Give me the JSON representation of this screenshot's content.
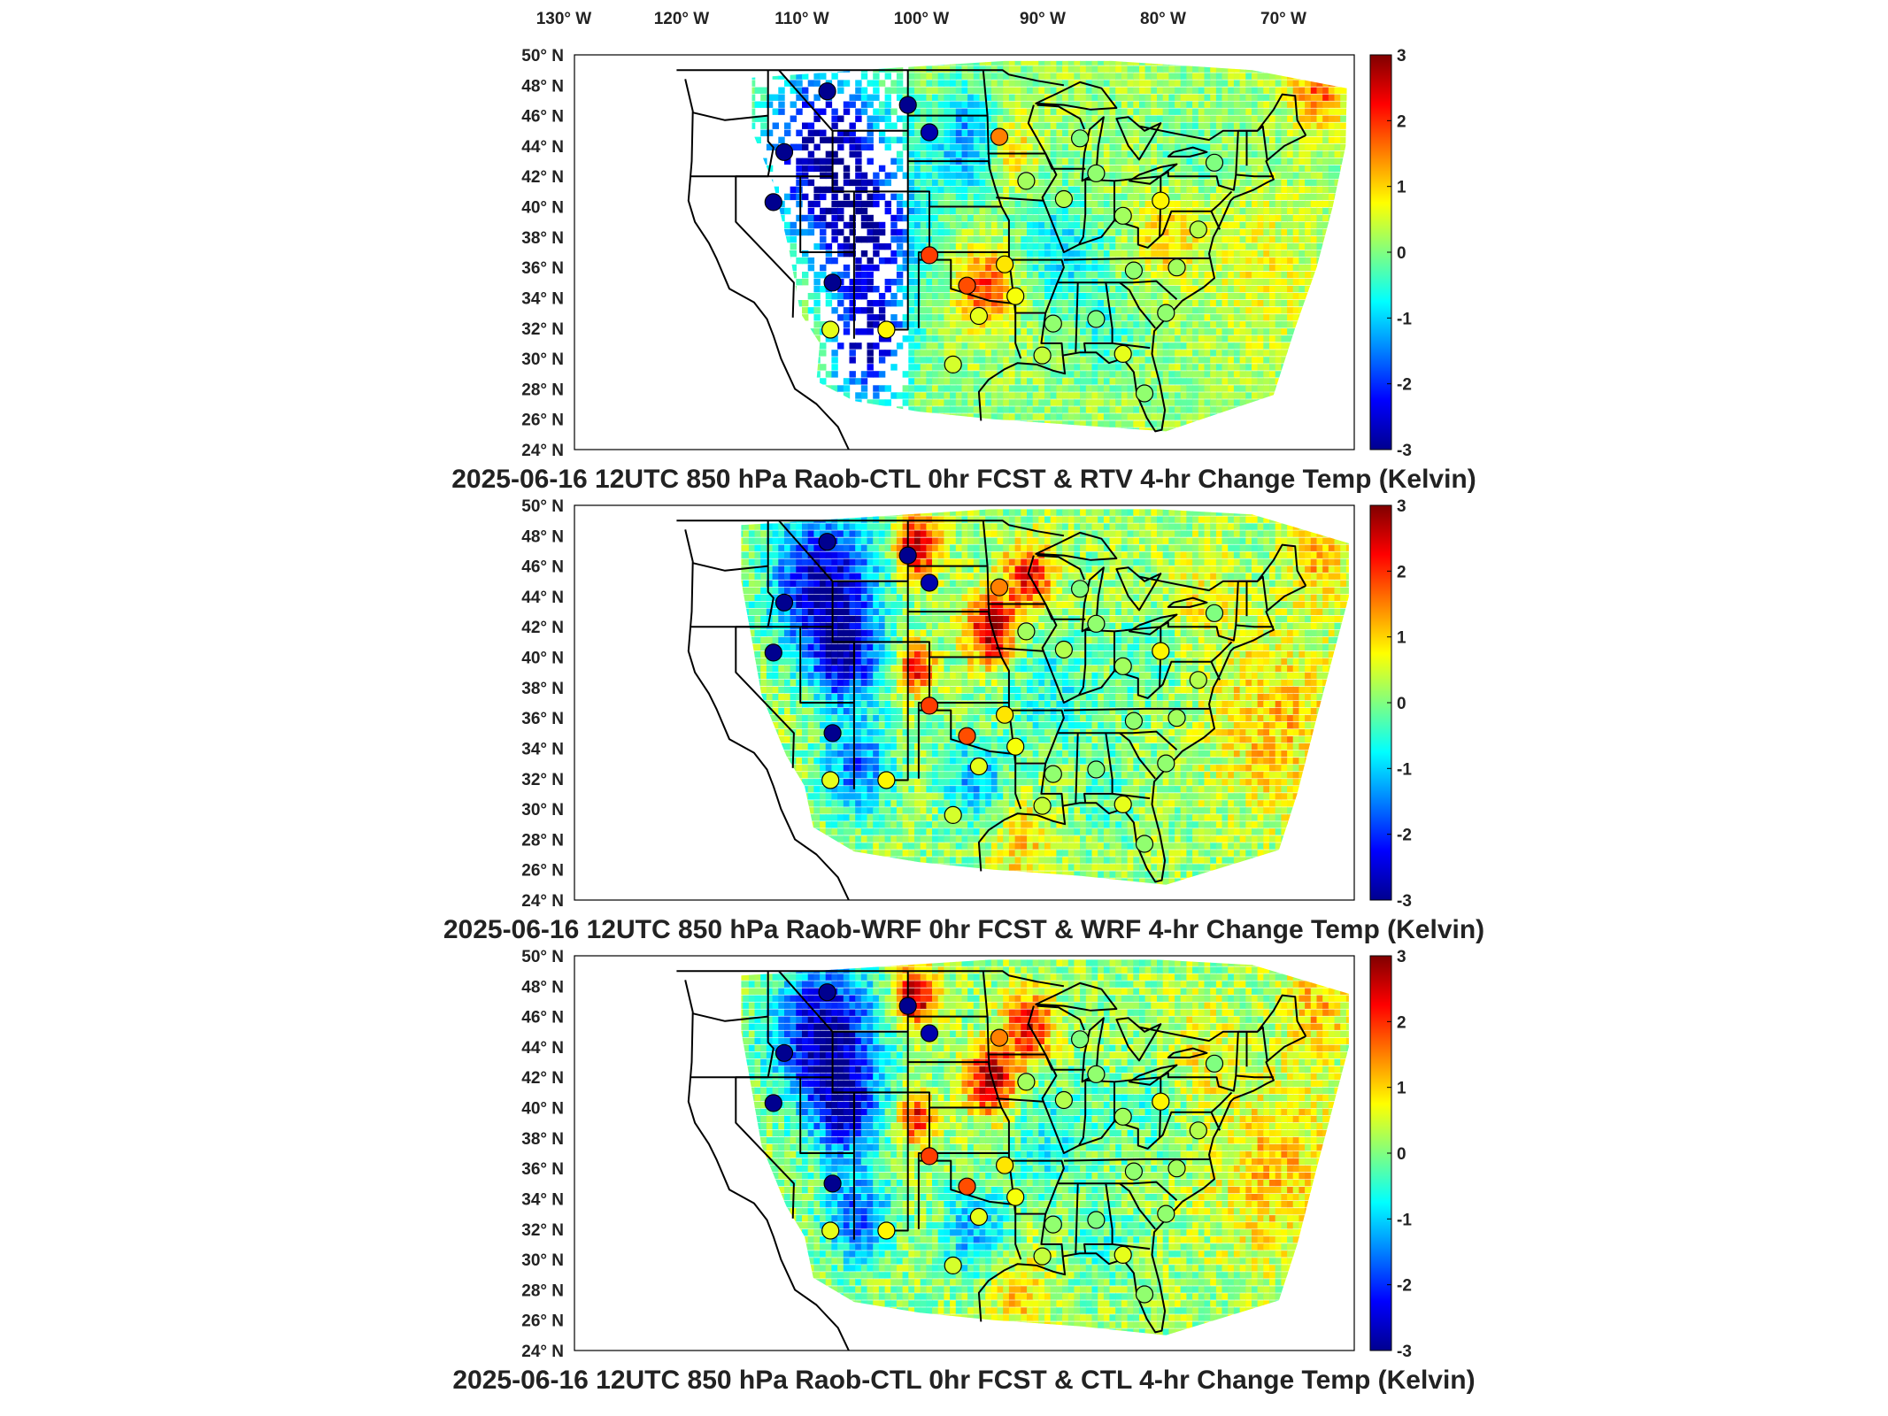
{
  "figure": {
    "lon_ticks": [
      "130",
      "120",
      "110",
      "100",
      "90",
      "80",
      "70"
    ],
    "lon_suffix": "W",
    "lat_ticks": [
      "50",
      "48",
      "46",
      "44",
      "42",
      "40",
      "38",
      "36",
      "34",
      "32",
      "30",
      "28",
      "26",
      "24"
    ],
    "lat_suffix": "N",
    "colorbar_ticks": [
      "3",
      "2",
      "1",
      "0",
      "-1",
      "-2",
      "-3"
    ],
    "colorbar_range": [
      -3,
      3
    ],
    "colormap": [
      "#00008f",
      "#0000ff",
      "#0080ff",
      "#00ffff",
      "#80ff80",
      "#ffff00",
      "#ff8000",
      "#ff0000",
      "#800000"
    ],
    "panels": [
      {
        "title": "2025-06-16 12UTC 850 hPa Raob-CTL 0hr FCST & RTV 4-hr Change Temp (Kelvin)",
        "field_style": "sparse",
        "stations": [
          {
            "lon": -111.5,
            "lat": 47.6,
            "value": -3
          },
          {
            "lon": -104,
            "lat": 46.7,
            "value": -3
          },
          {
            "lon": -102,
            "lat": 44.9,
            "value": -2.8
          },
          {
            "lon": -115.5,
            "lat": 43.6,
            "value": -3
          },
          {
            "lon": -116.5,
            "lat": 40.3,
            "value": -3
          },
          {
            "lon": -111,
            "lat": 35.0,
            "value": -3
          },
          {
            "lon": -111.2,
            "lat": 31.9,
            "value": 0.6
          },
          {
            "lon": -106,
            "lat": 31.9,
            "value": 0.8
          },
          {
            "lon": -102,
            "lat": 36.8,
            "value": 1.9
          },
          {
            "lon": -98.5,
            "lat": 34.8,
            "value": 1.8
          },
          {
            "lon": -95.5,
            "lat": 44.6,
            "value": 1.5
          },
          {
            "lon": -93,
            "lat": 41.7,
            "value": 0.2
          },
          {
            "lon": -97.4,
            "lat": 32.8,
            "value": 0.6
          },
          {
            "lon": -99.8,
            "lat": 29.6,
            "value": 0.5
          },
          {
            "lon": -95,
            "lat": 36.2,
            "value": 0.9
          },
          {
            "lon": -94,
            "lat": 34.1,
            "value": 0.7
          },
          {
            "lon": -89.5,
            "lat": 40.5,
            "value": 0.3
          },
          {
            "lon": -88,
            "lat": 44.5,
            "value": 0.0
          },
          {
            "lon": -86.5,
            "lat": 42.2,
            "value": 0.1
          },
          {
            "lon": -84,
            "lat": 39.4,
            "value": 0.2
          },
          {
            "lon": -83,
            "lat": 35.8,
            "value": 0.1
          },
          {
            "lon": -80.5,
            "lat": 40.4,
            "value": 0.8
          },
          {
            "lon": -77,
            "lat": 38.5,
            "value": 0.3
          },
          {
            "lon": -79,
            "lat": 36.0,
            "value": 0.2
          },
          {
            "lon": -75.5,
            "lat": 42.9,
            "value": 0.0
          },
          {
            "lon": -80,
            "lat": 33.0,
            "value": 0.1
          },
          {
            "lon": -84,
            "lat": 30.3,
            "value": 0.6
          },
          {
            "lon": -90.5,
            "lat": 32.3,
            "value": 0.1
          },
          {
            "lon": -86.5,
            "lat": 32.6,
            "value": 0.0
          },
          {
            "lon": -82,
            "lat": 27.7,
            "value": 0.1
          },
          {
            "lon": -91.5,
            "lat": 30.2,
            "value": 0.4
          }
        ]
      },
      {
        "title": "2025-06-16 12UTC 850 hPa Raob-WRF 0hr FCST & WRF 4-hr Change Temp (Kelvin)",
        "field_style": "dense",
        "stations": [
          {
            "lon": -111.5,
            "lat": 47.6,
            "value": -3
          },
          {
            "lon": -104,
            "lat": 46.7,
            "value": -3
          },
          {
            "lon": -102,
            "lat": 44.9,
            "value": -2.8
          },
          {
            "lon": -115.5,
            "lat": 43.6,
            "value": -3
          },
          {
            "lon": -116.5,
            "lat": 40.3,
            "value": -3
          },
          {
            "lon": -111,
            "lat": 35.0,
            "value": -3
          },
          {
            "lon": -111.2,
            "lat": 31.9,
            "value": 0.6
          },
          {
            "lon": -106,
            "lat": 31.9,
            "value": 0.8
          },
          {
            "lon": -102,
            "lat": 36.8,
            "value": 1.9
          },
          {
            "lon": -98.5,
            "lat": 34.8,
            "value": 1.8
          },
          {
            "lon": -95.5,
            "lat": 44.6,
            "value": 1.5
          },
          {
            "lon": -93,
            "lat": 41.7,
            "value": 0.2
          },
          {
            "lon": -97.4,
            "lat": 32.8,
            "value": 0.6
          },
          {
            "lon": -99.8,
            "lat": 29.6,
            "value": 0.5
          },
          {
            "lon": -95,
            "lat": 36.2,
            "value": 0.9
          },
          {
            "lon": -94,
            "lat": 34.1,
            "value": 0.7
          },
          {
            "lon": -89.5,
            "lat": 40.5,
            "value": 0.3
          },
          {
            "lon": -88,
            "lat": 44.5,
            "value": 0.0
          },
          {
            "lon": -86.5,
            "lat": 42.2,
            "value": 0.1
          },
          {
            "lon": -84,
            "lat": 39.4,
            "value": 0.2
          },
          {
            "lon": -83,
            "lat": 35.8,
            "value": 0.1
          },
          {
            "lon": -80.5,
            "lat": 40.4,
            "value": 0.8
          },
          {
            "lon": -77,
            "lat": 38.5,
            "value": 0.3
          },
          {
            "lon": -79,
            "lat": 36.0,
            "value": 0.2
          },
          {
            "lon": -75.5,
            "lat": 42.9,
            "value": 0.0
          },
          {
            "lon": -80,
            "lat": 33.0,
            "value": 0.1
          },
          {
            "lon": -84,
            "lat": 30.3,
            "value": 0.6
          },
          {
            "lon": -90.5,
            "lat": 32.3,
            "value": 0.1
          },
          {
            "lon": -86.5,
            "lat": 32.6,
            "value": 0.0
          },
          {
            "lon": -82,
            "lat": 27.7,
            "value": 0.1
          },
          {
            "lon": -91.5,
            "lat": 30.2,
            "value": 0.4
          }
        ]
      },
      {
        "title": "2025-06-16 12UTC 850 hPa Raob-CTL 0hr FCST & CTL 4-hr Change Temp (Kelvin)",
        "field_style": "dense",
        "stations": [
          {
            "lon": -111.5,
            "lat": 47.6,
            "value": -3
          },
          {
            "lon": -104,
            "lat": 46.7,
            "value": -3
          },
          {
            "lon": -102,
            "lat": 44.9,
            "value": -2.8
          },
          {
            "lon": -115.5,
            "lat": 43.6,
            "value": -3
          },
          {
            "lon": -116.5,
            "lat": 40.3,
            "value": -3
          },
          {
            "lon": -111,
            "lat": 35.0,
            "value": -3
          },
          {
            "lon": -111.2,
            "lat": 31.9,
            "value": 0.6
          },
          {
            "lon": -106,
            "lat": 31.9,
            "value": 0.8
          },
          {
            "lon": -102,
            "lat": 36.8,
            "value": 1.9
          },
          {
            "lon": -98.5,
            "lat": 34.8,
            "value": 1.8
          },
          {
            "lon": -95.5,
            "lat": 44.6,
            "value": 1.5
          },
          {
            "lon": -93,
            "lat": 41.7,
            "value": 0.2
          },
          {
            "lon": -97.4,
            "lat": 32.8,
            "value": 0.6
          },
          {
            "lon": -99.8,
            "lat": 29.6,
            "value": 0.5
          },
          {
            "lon": -95,
            "lat": 36.2,
            "value": 0.9
          },
          {
            "lon": -94,
            "lat": 34.1,
            "value": 0.7
          },
          {
            "lon": -89.5,
            "lat": 40.5,
            "value": 0.3
          },
          {
            "lon": -88,
            "lat": 44.5,
            "value": 0.0
          },
          {
            "lon": -86.5,
            "lat": 42.2,
            "value": 0.1
          },
          {
            "lon": -84,
            "lat": 39.4,
            "value": 0.2
          },
          {
            "lon": -83,
            "lat": 35.8,
            "value": 0.1
          },
          {
            "lon": -80.5,
            "lat": 40.4,
            "value": 0.8
          },
          {
            "lon": -77,
            "lat": 38.5,
            "value": 0.3
          },
          {
            "lon": -79,
            "lat": 36.0,
            "value": 0.2
          },
          {
            "lon": -75.5,
            "lat": 42.9,
            "value": 0.0
          },
          {
            "lon": -80,
            "lat": 33.0,
            "value": 0.1
          },
          {
            "lon": -84,
            "lat": 30.3,
            "value": 0.6
          },
          {
            "lon": -90.5,
            "lat": 32.3,
            "value": 0.1
          },
          {
            "lon": -86.5,
            "lat": 32.6,
            "value": 0.0
          },
          {
            "lon": -82,
            "lat": 27.7,
            "value": 0.1
          },
          {
            "lon": -91.5,
            "lat": 30.2,
            "value": 0.4
          }
        ]
      }
    ]
  }
}
